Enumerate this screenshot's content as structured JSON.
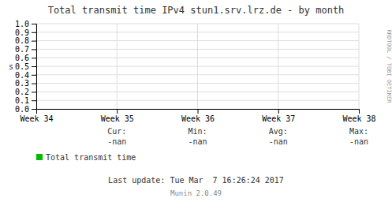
{
  "chart_data": {
    "type": "line",
    "title": "Total transmit time IPv4 stun1.srv.lrz.de - by month",
    "ylabel": "s",
    "categories": [
      "Week 34",
      "Week 35",
      "Week 36",
      "Week 37",
      "Week 38"
    ],
    "series": [
      {
        "name": "Total transmit time",
        "color": "#00bb00",
        "values": [
          null,
          null,
          null,
          null,
          null
        ]
      }
    ],
    "ylim": [
      0.0,
      1.0
    ],
    "yticks": [
      {
        "value": 0.0,
        "label": "0.0"
      },
      0.1,
      0.2,
      0.3,
      0.4,
      0.5,
      0.6,
      0.7,
      0.8,
      0.9,
      {
        "value": 1.0,
        "label": "1.0"
      }
    ],
    "grid": true,
    "legend": "bottom",
    "stats": [
      {
        "label": "Cur:",
        "value": "-nan"
      },
      {
        "label": "Min:",
        "value": "-nan"
      },
      {
        "label": "Avg:",
        "value": "-nan"
      },
      {
        "label": "Max:",
        "value": "-nan"
      }
    ],
    "annotations": [
      "Last update: Tue Mar  7 16:26:24 2017",
      "Munin 2.0.49"
    ],
    "watermark": "RRDTOOL / TOBI OETIKER"
  }
}
